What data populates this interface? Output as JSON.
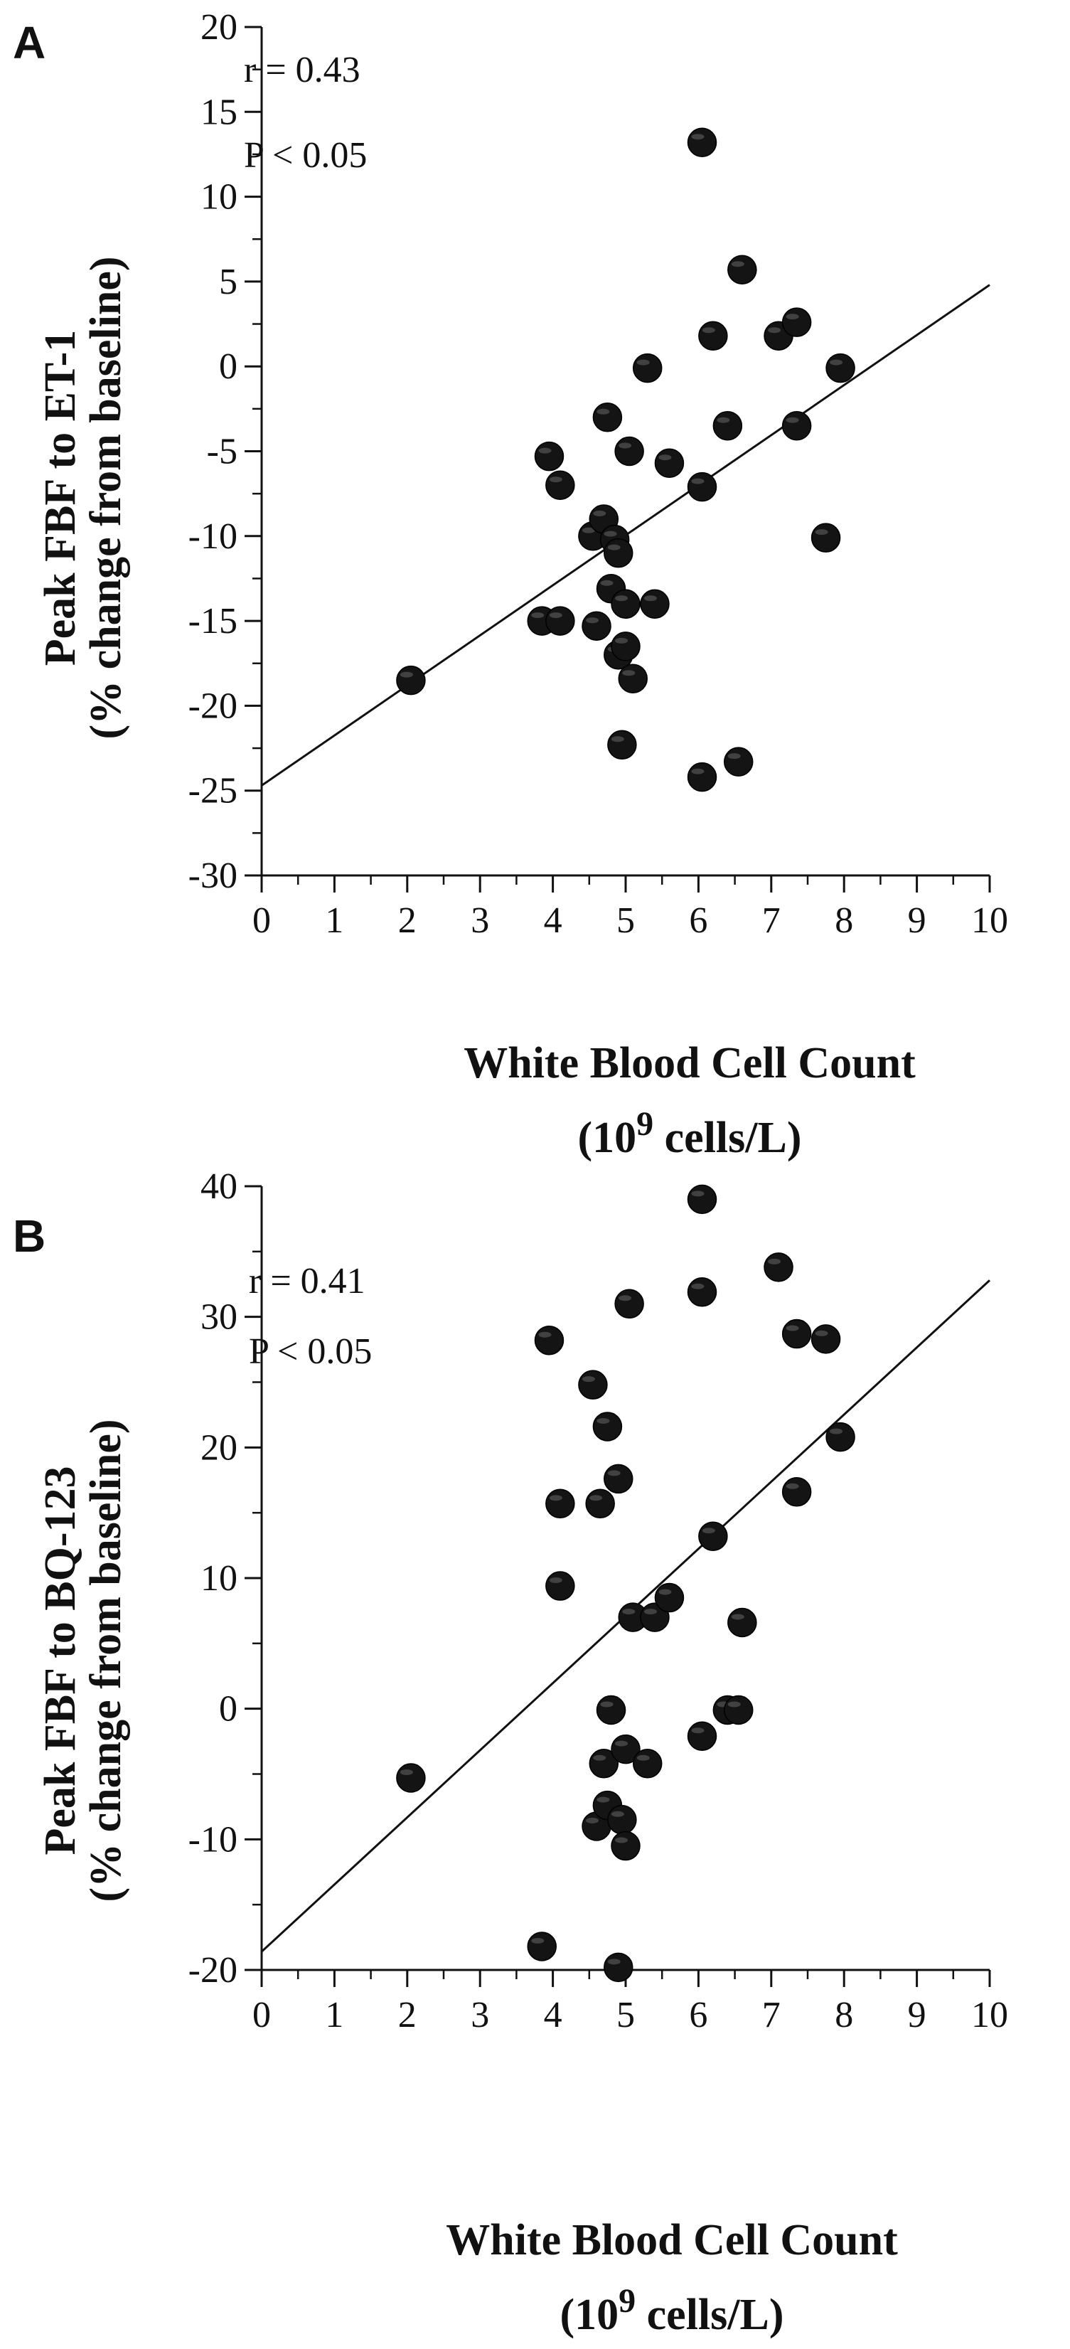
{
  "chart_data": [
    {
      "type": "scatter",
      "panel_label": "A",
      "xlabel": "White Blood Cell Count",
      "xlabel_unit_prefix": "(10",
      "xlabel_unit_exp": "9",
      "xlabel_unit_suffix": " cells/L)",
      "ylabel_line1": "Peak FBF to ET-1",
      "ylabel_line2": "(% change from baseline)",
      "annotation_r": "r = 0.43",
      "annotation_p": "P < 0.05",
      "xlim": [
        0,
        10
      ],
      "ylim": [
        -30,
        20
      ],
      "x_ticks": [
        "0",
        "1",
        "2",
        "3",
        "4",
        "5",
        "6",
        "7",
        "8",
        "9",
        "10"
      ],
      "y_ticks": [
        "20",
        "15",
        "10",
        "5",
        "0",
        "-5",
        "-10",
        "-15",
        "-20",
        "-25",
        "-30"
      ],
      "grid": false,
      "trendline": {
        "x": [
          0,
          10
        ],
        "y": [
          -24.7,
          4.8
        ]
      },
      "points": [
        {
          "x": 2.05,
          "y": -18.5
        },
        {
          "x": 3.85,
          "y": -15.0
        },
        {
          "x": 3.95,
          "y": -5.3
        },
        {
          "x": 4.1,
          "y": -15.0
        },
        {
          "x": 4.1,
          "y": -7.0
        },
        {
          "x": 4.55,
          "y": -10.0
        },
        {
          "x": 4.6,
          "y": -15.3
        },
        {
          "x": 4.7,
          "y": -9.0
        },
        {
          "x": 4.75,
          "y": -3.0
        },
        {
          "x": 4.8,
          "y": -13.1
        },
        {
          "x": 4.85,
          "y": -10.2
        },
        {
          "x": 4.9,
          "y": -11.0
        },
        {
          "x": 4.9,
          "y": -17.0
        },
        {
          "x": 4.95,
          "y": -22.3
        },
        {
          "x": 5.0,
          "y": -14.0
        },
        {
          "x": 5.0,
          "y": -16.5
        },
        {
          "x": 5.05,
          "y": -5.0
        },
        {
          "x": 5.1,
          "y": -18.4
        },
        {
          "x": 5.3,
          "y": -0.1
        },
        {
          "x": 5.4,
          "y": -14.0
        },
        {
          "x": 5.6,
          "y": -5.7
        },
        {
          "x": 6.05,
          "y": 13.2
        },
        {
          "x": 6.05,
          "y": -7.1
        },
        {
          "x": 6.05,
          "y": -24.2
        },
        {
          "x": 6.2,
          "y": 1.8
        },
        {
          "x": 6.4,
          "y": -3.5
        },
        {
          "x": 6.55,
          "y": -23.3
        },
        {
          "x": 6.6,
          "y": 5.7
        },
        {
          "x": 7.1,
          "y": 1.8
        },
        {
          "x": 7.35,
          "y": 2.6
        },
        {
          "x": 7.35,
          "y": -3.5
        },
        {
          "x": 7.75,
          "y": -10.1
        },
        {
          "x": 7.95,
          "y": -0.1
        }
      ]
    },
    {
      "type": "scatter",
      "panel_label": "B",
      "xlabel": "White Blood Cell Count",
      "xlabel_unit_prefix": "(10",
      "xlabel_unit_exp": "9",
      "xlabel_unit_suffix": " cells/L)",
      "ylabel_line1": "Peak FBF to BQ-123",
      "ylabel_line2": "(% change from baseline)",
      "annotation_r": "r = 0.41",
      "annotation_p": "P < 0.05",
      "xlim": [
        0,
        10
      ],
      "ylim": [
        -20,
        40
      ],
      "x_ticks": [
        "0",
        "1",
        "2",
        "3",
        "4",
        "5",
        "6",
        "7",
        "8",
        "9",
        "10"
      ],
      "y_ticks": [
        "40",
        "30",
        "20",
        "10",
        "0",
        "-10",
        "-20"
      ],
      "grid": false,
      "trendline": {
        "x": [
          0,
          10
        ],
        "y": [
          -18.6,
          32.8
        ]
      },
      "points": [
        {
          "x": 2.05,
          "y": -5.3
        },
        {
          "x": 3.85,
          "y": -18.2
        },
        {
          "x": 3.95,
          "y": 28.2
        },
        {
          "x": 4.1,
          "y": 15.7
        },
        {
          "x": 4.1,
          "y": 9.4
        },
        {
          "x": 4.55,
          "y": 24.8
        },
        {
          "x": 4.6,
          "y": -9.0
        },
        {
          "x": 4.65,
          "y": 15.7
        },
        {
          "x": 4.7,
          "y": -4.2
        },
        {
          "x": 4.75,
          "y": 21.6
        },
        {
          "x": 4.75,
          "y": -7.4
        },
        {
          "x": 4.8,
          "y": -0.1
        },
        {
          "x": 4.9,
          "y": 17.6
        },
        {
          "x": 4.9,
          "y": -19.8
        },
        {
          "x": 4.95,
          "y": -8.5
        },
        {
          "x": 5.0,
          "y": -10.5
        },
        {
          "x": 5.0,
          "y": -3.1
        },
        {
          "x": 5.05,
          "y": 31.0
        },
        {
          "x": 5.1,
          "y": 7.0
        },
        {
          "x": 5.3,
          "y": -4.2
        },
        {
          "x": 5.4,
          "y": 7.0
        },
        {
          "x": 5.6,
          "y": 8.5
        },
        {
          "x": 6.05,
          "y": 39.0
        },
        {
          "x": 6.05,
          "y": 31.9
        },
        {
          "x": 6.05,
          "y": -2.1
        },
        {
          "x": 6.2,
          "y": 13.2
        },
        {
          "x": 6.4,
          "y": -0.1
        },
        {
          "x": 6.55,
          "y": -0.1
        },
        {
          "x": 6.6,
          "y": 6.6
        },
        {
          "x": 7.1,
          "y": 33.8
        },
        {
          "x": 7.35,
          "y": 28.7
        },
        {
          "x": 7.35,
          "y": 16.6
        },
        {
          "x": 7.75,
          "y": 28.3
        },
        {
          "x": 7.95,
          "y": 20.8
        }
      ]
    }
  ]
}
